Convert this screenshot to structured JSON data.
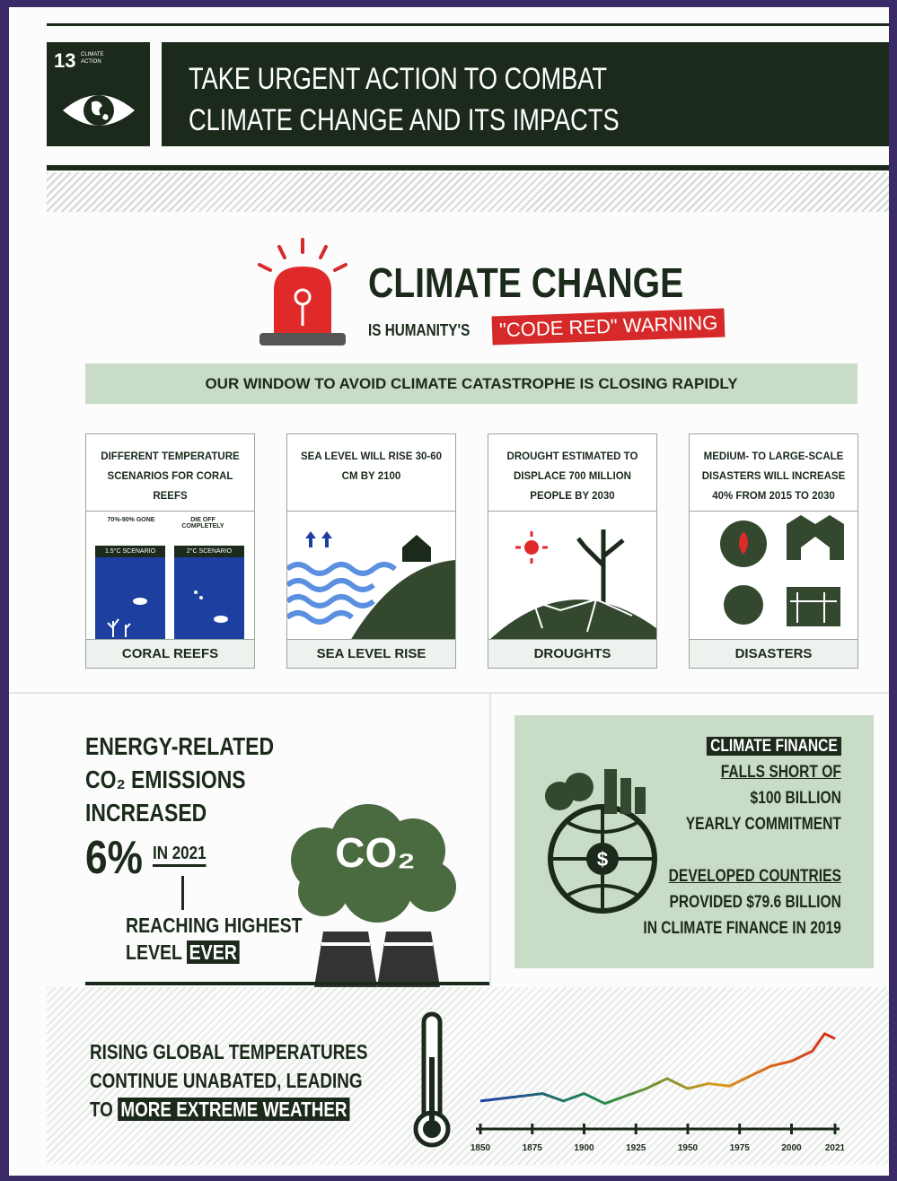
{
  "header": {
    "goal_number": "13",
    "goal_label_line1": "CLIMATE",
    "goal_label_line2": "ACTION",
    "title_line1": "TAKE URGENT ACTION TO COMBAT",
    "title_line2": "CLIMATE CHANGE AND ITS IMPACTS"
  },
  "headline": {
    "title": "CLIMATE CHANGE",
    "subtitle": "IS HUMANITY'S",
    "highlight": "\"CODE RED\" WARNING"
  },
  "banner": "OUR WINDOW TO AVOID CLIMATE CATASTROPHE IS CLOSING RAPIDLY",
  "cards": [
    {
      "description": "DIFFERENT TEMPERATURE SCENARIOS FOR CORAL REEFS",
      "label": "CORAL REEFS",
      "scenarios": [
        {
          "outcome": "70%-90% GONE",
          "scenario": "1.5°C SCENARIO"
        },
        {
          "outcome": "DIE OFF COMPLETELY",
          "scenario": "2°C SCENARIO"
        }
      ]
    },
    {
      "description": "SEA LEVEL WILL RISE 30-60 CM BY 2100",
      "label": "SEA LEVEL RISE"
    },
    {
      "description": "DROUGHT ESTIMATED TO DISPLACE 700 MILLION PEOPLE BY 2030",
      "label": "DROUGHTS"
    },
    {
      "description": "MEDIUM- TO LARGE-SCALE DISASTERS WILL INCREASE 40% FROM 2015 TO 2030",
      "label": "DISASTERS"
    }
  ],
  "emissions": {
    "line1": "ENERGY-RELATED",
    "line2": "CO₂ EMISSIONS",
    "line3": "INCREASED",
    "figure": "6%",
    "year": "IN 2021",
    "note_line1": "REACHING HIGHEST",
    "note_line2": "LEVEL",
    "note_highlight": "EVER",
    "cloud_label": "CO₂"
  },
  "finance": {
    "tag": "CLIMATE FINANCE",
    "line1": "FALLS SHORT OF",
    "line2": "$100 BILLION",
    "line3": "YEARLY COMMITMENT",
    "line4": "DEVELOPED COUNTRIES",
    "line5": "PROVIDED $79.6 BILLION",
    "line6": "IN CLIMATE FINANCE IN 2019"
  },
  "temperatures": {
    "line1": "RISING GLOBAL TEMPERATURES",
    "line2": "CONTINUE UNABATED, LEADING",
    "line3": "TO",
    "highlight": "MORE EXTREME WEATHER"
  },
  "chart_data": {
    "type": "line",
    "x": [
      1850,
      1860,
      1870,
      1880,
      1890,
      1900,
      1910,
      1920,
      1930,
      1940,
      1950,
      1960,
      1970,
      1980,
      1990,
      2000,
      2010,
      2016,
      2021
    ],
    "values": [
      -0.4,
      -0.35,
      -0.3,
      -0.25,
      -0.4,
      -0.25,
      -0.45,
      -0.3,
      -0.15,
      0.05,
      -0.15,
      -0.05,
      -0.1,
      0.1,
      0.3,
      0.4,
      0.6,
      0.95,
      0.85
    ],
    "xlim": [
      1850,
      2021
    ],
    "ylim": [
      -0.6,
      1.2
    ],
    "xticks": [
      1850,
      1875,
      1900,
      1925,
      1950,
      1975,
      2000,
      2021
    ],
    "colors": [
      "#1f3fa8",
      "#1f8a4a",
      "#d99a1a",
      "#d62a1a"
    ]
  }
}
